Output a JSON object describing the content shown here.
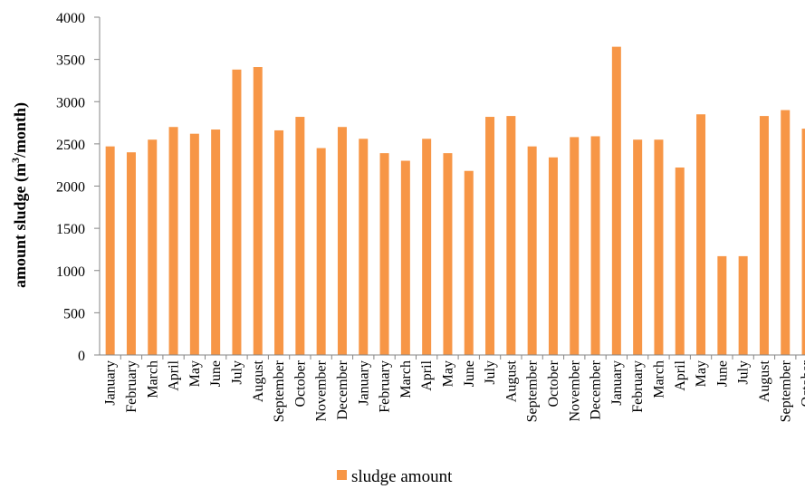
{
  "chart_data": {
    "type": "bar",
    "title": "",
    "xlabel": "",
    "ylabel_main": "amount sludge (m",
    "ylabel_sup": "3",
    "ylabel_tail": "/month)",
    "categories": [
      "January",
      "February",
      "March",
      "April",
      "May",
      "June",
      "July",
      "August",
      "September",
      "October",
      "November",
      "December",
      "January",
      "February",
      "March",
      "April",
      "May",
      "June",
      "July",
      "August",
      "September",
      "October",
      "November",
      "December",
      "January",
      "February",
      "March",
      "April",
      "May",
      "June",
      "July",
      "August",
      "September",
      "October"
    ],
    "series": [
      {
        "name": "sludge amount",
        "values": [
          2470,
          2400,
          2550,
          2700,
          2620,
          2670,
          3380,
          3410,
          2660,
          2820,
          2450,
          2700,
          2560,
          2390,
          2300,
          2560,
          2390,
          2180,
          2820,
          2830,
          2470,
          2340,
          2580,
          2590,
          3650,
          2550,
          2550,
          2220,
          2850,
          1170,
          1170,
          2830,
          2900,
          2680
        ]
      }
    ],
    "ylim": [
      0,
      4000
    ],
    "yticks": [
      0,
      500,
      1000,
      1500,
      2000,
      2500,
      3000,
      3500,
      4000
    ],
    "grid": false,
    "legend_position": "bottom-center",
    "colors": {
      "bar": "#F79646",
      "axis": "#868686"
    }
  }
}
